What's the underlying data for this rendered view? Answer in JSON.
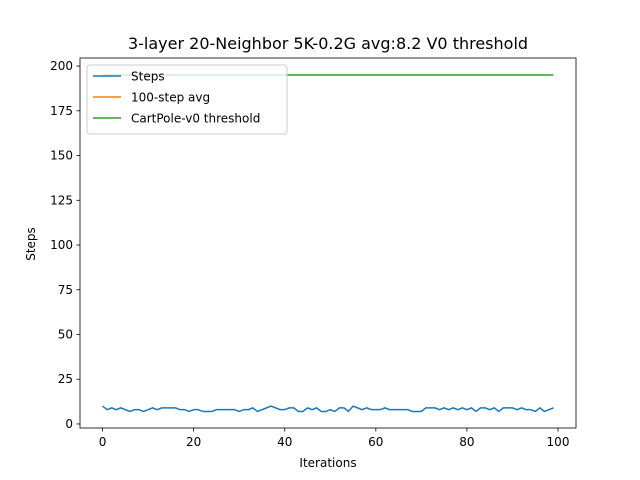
{
  "chart_data": {
    "type": "line",
    "title": "3-layer 20-Neighbor 5K-0.2G avg:8.2 V0 threshold",
    "xlabel": "Iterations",
    "ylabel": "Steps",
    "xlim": [
      -4.95,
      103.95
    ],
    "ylim": [
      -2.25,
      204.5
    ],
    "xticks": [
      0,
      20,
      40,
      60,
      80,
      100
    ],
    "yticks": [
      0,
      25,
      50,
      75,
      100,
      125,
      150,
      175,
      200
    ],
    "grid": false,
    "legend": "upper-left",
    "series": [
      {
        "name": "Steps",
        "color": "#1f77b4",
        "x": [
          0,
          1,
          2,
          3,
          4,
          5,
          6,
          7,
          8,
          9,
          10,
          11,
          12,
          13,
          14,
          15,
          16,
          17,
          18,
          19,
          20,
          21,
          22,
          23,
          24,
          25,
          26,
          27,
          28,
          29,
          30,
          31,
          32,
          33,
          34,
          35,
          36,
          37,
          38,
          39,
          40,
          41,
          42,
          43,
          44,
          45,
          46,
          47,
          48,
          49,
          50,
          51,
          52,
          53,
          54,
          55,
          56,
          57,
          58,
          59,
          60,
          61,
          62,
          63,
          64,
          65,
          66,
          67,
          68,
          69,
          70,
          71,
          72,
          73,
          74,
          75,
          76,
          77,
          78,
          79,
          80,
          81,
          82,
          83,
          84,
          85,
          86,
          87,
          88,
          89,
          90,
          91,
          92,
          93,
          94,
          95,
          96,
          97,
          98,
          99
        ],
        "values": [
          10,
          8,
          9,
          8,
          9,
          8,
          7,
          8,
          8,
          7,
          8,
          9,
          8,
          9,
          9,
          9,
          9,
          8,
          8,
          7,
          8,
          8,
          7,
          7,
          7,
          8,
          8,
          8,
          8,
          8,
          7,
          8,
          8,
          9,
          7,
          8,
          9,
          10,
          9,
          8,
          8,
          9,
          9,
          7,
          7,
          9,
          8,
          9,
          7,
          7,
          8,
          7,
          9,
          9,
          7,
          10,
          9,
          8,
          9,
          8,
          8,
          8,
          9,
          8,
          8,
          8,
          8,
          8,
          7,
          7,
          7,
          9,
          9,
          9,
          8,
          9,
          8,
          9,
          8,
          9,
          8,
          9,
          7,
          9,
          9,
          8,
          9,
          7,
          9,
          9,
          9,
          8,
          9,
          8,
          8,
          7,
          9,
          7,
          8,
          9
        ]
      },
      {
        "name": "100-step avg",
        "color": "#ff7f0e",
        "x": [],
        "values": []
      },
      {
        "name": "CartPole-v0 threshold",
        "color": "#2ca02c",
        "x": [
          0,
          99
        ],
        "values": [
          195,
          195
        ]
      }
    ]
  }
}
